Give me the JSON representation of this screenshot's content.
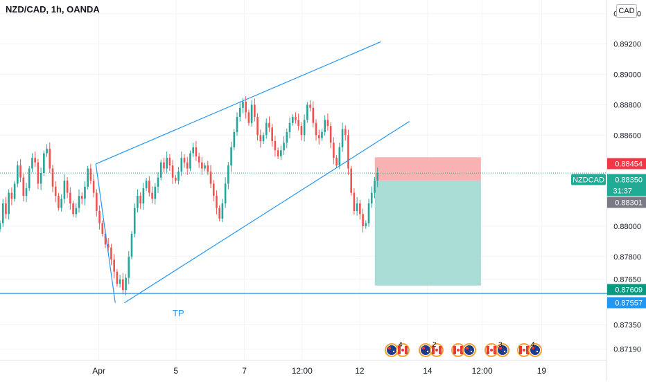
{
  "header": {
    "symbol_title": "NZD/CAD, 1h, OANDA",
    "currency_button": "CAD"
  },
  "chart_data": {
    "type": "candlestick",
    "symbol": "NZDCAD",
    "interval": "1h",
    "broker": "OANDA",
    "x_tick_labels": [
      "Apr",
      "5",
      "7",
      "12:00",
      "12",
      "14",
      "12:00",
      "19"
    ],
    "y_tick_labels": [
      "0.89400",
      "0.89200",
      "0.89000",
      "0.88800",
      "0.88600",
      "0.88000",
      "0.87800",
      "0.87650",
      "0.87350",
      "0.87190"
    ],
    "ylim": [
      0.8712,
      0.8949
    ],
    "grid": true,
    "price_badges": [
      {
        "label": "",
        "value": "0.88454",
        "color": "#f23645"
      },
      {
        "label": "NZDCAD",
        "value": "0.88350",
        "sub": "31:37",
        "color": "#22ab94"
      },
      {
        "label": "",
        "value": "0.88301",
        "color": "#787b86"
      },
      {
        "label": "",
        "value": "0.87609",
        "color": "#089981"
      },
      {
        "label": "",
        "value": "0.87557",
        "color": "#2196f3"
      }
    ],
    "current_price": 0.8835,
    "annotations": [
      {
        "text": "TP",
        "color": "#2196f3"
      }
    ],
    "channel": {
      "upper_line": [
        {
          "t": 0.158,
          "p": 0.8841
        },
        {
          "t": 0.628,
          "p": 0.89215
        }
      ],
      "lower_line": [
        {
          "t": 0.205,
          "p": 0.87495
        },
        {
          "t": 0.675,
          "p": 0.8869
        }
      ]
    },
    "horizontal_line": {
      "p": 0.87557,
      "color": "#2196f3"
    },
    "position": {
      "type": "short",
      "entry": 0.88301,
      "stop": 0.88454,
      "target": 0.87609,
      "stop_color": "#f7a5a5",
      "target_color": "#9ad6cc"
    },
    "events": [
      {
        "count": "4",
        "flags": [
          "nz",
          "ca"
        ]
      },
      {
        "count": "2",
        "flags": [
          "nz",
          "ca"
        ]
      },
      {
        "count": "",
        "flags": [
          "ca",
          "nz"
        ]
      },
      {
        "count": "3",
        "flags": [
          "ca",
          "nz"
        ]
      },
      {
        "count": "4",
        "flags": [
          "ca",
          "nz"
        ]
      }
    ],
    "series_close": [
      0.8802,
      0.8815,
      0.8808,
      0.8822,
      0.8818,
      0.8828,
      0.884,
      0.8832,
      0.882,
      0.8825,
      0.8838,
      0.8845,
      0.8842,
      0.8828,
      0.8835,
      0.8848,
      0.8851,
      0.8838,
      0.8826,
      0.882,
      0.8812,
      0.8818,
      0.883,
      0.8822,
      0.8815,
      0.8808,
      0.8812,
      0.882,
      0.8818,
      0.8826,
      0.8838,
      0.883,
      0.8822,
      0.881,
      0.8802,
      0.8795,
      0.8788,
      0.8786,
      0.8778,
      0.877,
      0.8762,
      0.8765,
      0.8758,
      0.8766,
      0.878,
      0.8795,
      0.8812,
      0.882,
      0.8815,
      0.8825,
      0.883,
      0.8822,
      0.8818,
      0.8826,
      0.8832,
      0.8842,
      0.8838,
      0.8845,
      0.884,
      0.8832,
      0.883,
      0.8836,
      0.8845,
      0.8842,
      0.8838,
      0.8848,
      0.8852,
      0.8846,
      0.8842,
      0.8838,
      0.884,
      0.8836,
      0.8828,
      0.882,
      0.8812,
      0.8805,
      0.8815,
      0.8828,
      0.884,
      0.8852,
      0.8862,
      0.8872,
      0.8878,
      0.8882,
      0.8875,
      0.8868,
      0.888,
      0.8872,
      0.886,
      0.8856,
      0.886,
      0.8868,
      0.8865,
      0.8856,
      0.885,
      0.8846,
      0.885,
      0.8855,
      0.8862,
      0.8868,
      0.8872,
      0.887,
      0.8866,
      0.886,
      0.887,
      0.888,
      0.8878,
      0.8868,
      0.886,
      0.8858,
      0.8862,
      0.887,
      0.8866,
      0.8855,
      0.8845,
      0.884,
      0.8852,
      0.8864,
      0.886,
      0.8838,
      0.8822,
      0.881,
      0.8815,
      0.8808,
      0.88,
      0.8802,
      0.8815,
      0.8822,
      0.883,
      0.8835
    ]
  }
}
